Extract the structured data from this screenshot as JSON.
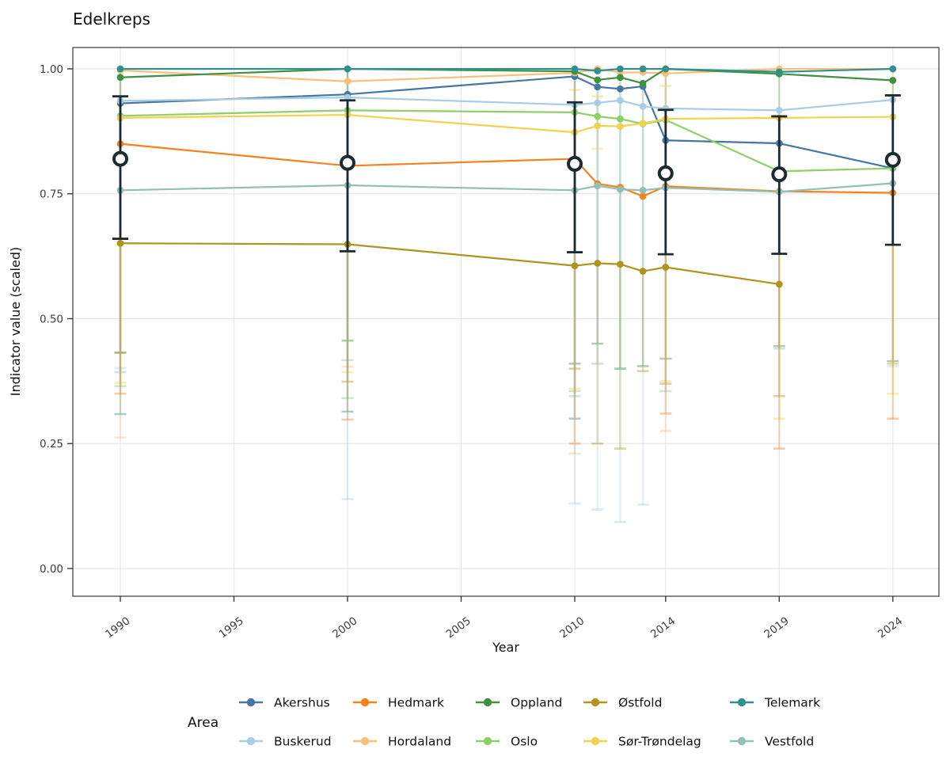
{
  "colors": {
    "background": "#ffffff",
    "grid": "#e8e8e8",
    "panel_border": "#5f5f5f",
    "tick": "#3a3a3a",
    "tick_label": "#3d3d3d",
    "mean_black": "#1b2b30"
  },
  "legend": {
    "title": "Area",
    "rows": [
      [
        "akershus",
        "hedmark",
        "oppland",
        "ostfold",
        "telemark"
      ],
      [
        "buskerud",
        "hordaland",
        "oslo",
        "sor_trondelag",
        "vestfold"
      ]
    ]
  },
  "chart_data": {
    "type": "line",
    "title": "Edelkreps",
    "xlabel": "Year",
    "ylabel": "Indicator value (scaled)",
    "x_ticks": [
      1990,
      1995,
      2000,
      2005,
      2010,
      2014,
      2019,
      2024
    ],
    "y_ticks": [
      0.0,
      0.25,
      0.5,
      0.75,
      1.0
    ],
    "xlim": [
      1987.9,
      2026.1
    ],
    "ylim": [
      -0.043,
      1.043
    ],
    "grid": true,
    "legend_position": "bottom",
    "x": [
      1990,
      2000,
      2010,
      2011,
      2012,
      2013,
      2014,
      2019,
      2024
    ],
    "series": [
      {
        "id": "akershus",
        "name": "Akershus",
        "color": "#4677a3",
        "values": [
          0.931,
          0.949,
          0.985,
          0.964,
          0.96,
          0.965,
          0.857,
          0.851,
          0.801
        ]
      },
      {
        "id": "buskerud",
        "name": "Buskerud",
        "color": "#a9cde4",
        "values": [
          0.936,
          0.943,
          0.928,
          0.932,
          0.937,
          0.925,
          0.921,
          0.917,
          0.938
        ]
      },
      {
        "id": "hedmark",
        "name": "Hedmark",
        "color": "#f5821f",
        "values": [
          0.85,
          0.806,
          0.82,
          0.77,
          0.763,
          0.745,
          0.765,
          0.755,
          0.752
        ]
      },
      {
        "id": "hordaland",
        "name": "Hordaland",
        "color": "#fcbe7e",
        "values": [
          0.997,
          0.975,
          0.992,
          1.0,
          0.993,
          0.993,
          0.991,
          1.0,
          1.0
        ]
      },
      {
        "id": "oppland",
        "name": "Oppland",
        "color": "#3f9142",
        "values": [
          0.983,
          1.0,
          0.995,
          0.978,
          0.983,
          0.971,
          1.0,
          0.99,
          0.977
        ]
      },
      {
        "id": "oslo",
        "name": "Oslo",
        "color": "#8bd168",
        "values": [
          0.906,
          0.917,
          0.913,
          0.905,
          0.9,
          0.89,
          0.898,
          0.795,
          0.801
        ]
      },
      {
        "id": "ostfold",
        "name": "Østfold",
        "color": "#b2931d",
        "values": [
          0.651,
          0.649,
          0.606,
          0.611,
          0.609,
          0.595,
          0.603,
          0.569,
          null
        ]
      },
      {
        "id": "sor_trondelag",
        "name": "Sør-Trøndelag",
        "color": "#f2d14e",
        "values": [
          0.902,
          0.908,
          0.873,
          0.886,
          0.885,
          0.891,
          0.9,
          0.902,
          0.904
        ]
      },
      {
        "id": "telemark",
        "name": "Telemark",
        "color": "#31908c",
        "values": [
          1.0,
          1.0,
          1.0,
          0.996,
          1.0,
          1.0,
          1.0,
          0.994,
          1.0
        ]
      },
      {
        "id": "vestfold",
        "name": "Vestfold",
        "color": "#92c0b4",
        "values": [
          0.757,
          0.767,
          0.757,
          0.766,
          0.759,
          0.757,
          0.762,
          0.754,
          0.771
        ]
      }
    ],
    "mean_series": {
      "name": "Mean indicator (open circle, 95% interval)",
      "color": "#1b2b30",
      "points": [
        {
          "x": 1990,
          "y": 0.82,
          "lo": 0.66,
          "hi": 0.945
        },
        {
          "x": 2000,
          "y": 0.812,
          "lo": 0.635,
          "hi": 0.937
        },
        {
          "x": 2010,
          "y": 0.81,
          "lo": 0.633,
          "hi": 0.933
        },
        {
          "x": 2014,
          "y": 0.791,
          "lo": 0.629,
          "hi": 0.918
        },
        {
          "x": 2019,
          "y": 0.789,
          "lo": 0.63,
          "hi": 0.905
        },
        {
          "x": 2024,
          "y": 0.818,
          "lo": 0.648,
          "hi": 0.947
        }
      ]
    },
    "faint_error_bars": [
      {
        "x": 1990,
        "series": "oppland",
        "lo": 0.432
      },
      {
        "x": 1990,
        "series": "ostfold",
        "lo": 0.432
      },
      {
        "x": 1990,
        "series": "buskerud",
        "lo": 0.401
      },
      {
        "x": 1990,
        "series": "vestfold",
        "lo": 0.393
      },
      {
        "x": 1990,
        "series": "sor_trondelag",
        "lo": 0.372
      },
      {
        "x": 1990,
        "series": "oslo",
        "lo": 0.365
      },
      {
        "x": 1990,
        "series": "hedmark",
        "lo": 0.35
      },
      {
        "x": 1990,
        "series": "telemark",
        "lo": 0.309
      },
      {
        "x": 1990,
        "series": "hordaland",
        "lo": 0.262
      },
      {
        "x": 2000,
        "series": "oppland",
        "lo": 0.456
      },
      {
        "x": 2000,
        "series": "vestfold",
        "lo": 0.417
      },
      {
        "x": 2000,
        "series": "hordaland",
        "lo": 0.404
      },
      {
        "x": 2000,
        "series": "sor_trondelag",
        "lo": 0.393
      },
      {
        "x": 2000,
        "series": "ostfold",
        "lo": 0.374
      },
      {
        "x": 2000,
        "series": "oslo",
        "lo": 0.341
      },
      {
        "x": 2000,
        "series": "telemark",
        "lo": 0.314
      },
      {
        "x": 2000,
        "series": "hedmark",
        "lo": 0.298
      },
      {
        "x": 2000,
        "series": "buskerud",
        "lo": 0.139
      },
      {
        "x": 2010,
        "series": "oppland",
        "lo": 0.41
      },
      {
        "x": 2010,
        "series": "ostfold",
        "lo": 0.4
      },
      {
        "x": 2010,
        "series": "sor_trondelag",
        "lo": 0.36,
        "hi": 0.958
      },
      {
        "x": 2010,
        "series": "oslo",
        "lo": 0.355
      },
      {
        "x": 2010,
        "series": "vestfold",
        "lo": 0.345
      },
      {
        "x": 2010,
        "series": "telemark",
        "lo": 0.3
      },
      {
        "x": 2010,
        "series": "hedmark",
        "lo": 0.25
      },
      {
        "x": 2010,
        "series": "hordaland",
        "lo": 0.23
      },
      {
        "x": 2010,
        "series": "buskerud",
        "lo": 0.13
      },
      {
        "x": 2011,
        "series": "oppland",
        "lo": 0.45
      },
      {
        "x": 2011,
        "series": "vestfold",
        "lo": 0.41
      },
      {
        "x": 2011,
        "series": "sor_trondelag",
        "lo": 0.84,
        "hi": 0.945
      },
      {
        "x": 2011,
        "series": "ostfold",
        "lo": 0.25
      },
      {
        "x": 2011,
        "series": "buskerud",
        "lo": 0.118
      },
      {
        "x": 2012,
        "series": "oppland",
        "lo": 0.4
      },
      {
        "x": 2012,
        "series": "vestfold",
        "lo": 0.4
      },
      {
        "x": 2012,
        "series": "ostfold",
        "lo": 0.24
      },
      {
        "x": 2012,
        "series": "buskerud",
        "lo": 0.093
      },
      {
        "x": 2013,
        "series": "oppland",
        "lo": 0.405
      },
      {
        "x": 2013,
        "series": "ostfold",
        "lo": 0.395
      },
      {
        "x": 2013,
        "series": "buskerud",
        "lo": 0.128
      },
      {
        "x": 2014,
        "series": "oppland",
        "lo": 0.42
      },
      {
        "x": 2014,
        "series": "sor_trondelag",
        "lo": 0.375,
        "hi": 0.966
      },
      {
        "x": 2014,
        "series": "ostfold",
        "lo": 0.37
      },
      {
        "x": 2014,
        "series": "vestfold",
        "lo": 0.355
      },
      {
        "x": 2014,
        "series": "hedmark",
        "lo": 0.31
      },
      {
        "x": 2014,
        "series": "hordaland",
        "lo": 0.275
      },
      {
        "x": 2019,
        "series": "oppland",
        "lo": 0.445
      },
      {
        "x": 2019,
        "series": "vestfold",
        "lo": 0.44
      },
      {
        "x": 2019,
        "series": "ostfold",
        "lo": 0.345
      },
      {
        "x": 2019,
        "series": "sor_trondelag",
        "lo": 0.3
      },
      {
        "x": 2019,
        "series": "hedmark",
        "lo": 0.24
      },
      {
        "x": 2024,
        "series": "oppland",
        "lo": 0.415
      },
      {
        "x": 2024,
        "series": "oslo",
        "lo": 0.41
      },
      {
        "x": 2024,
        "series": "hordaland",
        "lo": 0.41
      },
      {
        "x": 2024,
        "series": "buskerud",
        "lo": 0.405
      },
      {
        "x": 2024,
        "series": "sor_trondelag",
        "lo": 0.35
      },
      {
        "x": 2024,
        "series": "hedmark",
        "lo": 0.3
      }
    ]
  }
}
